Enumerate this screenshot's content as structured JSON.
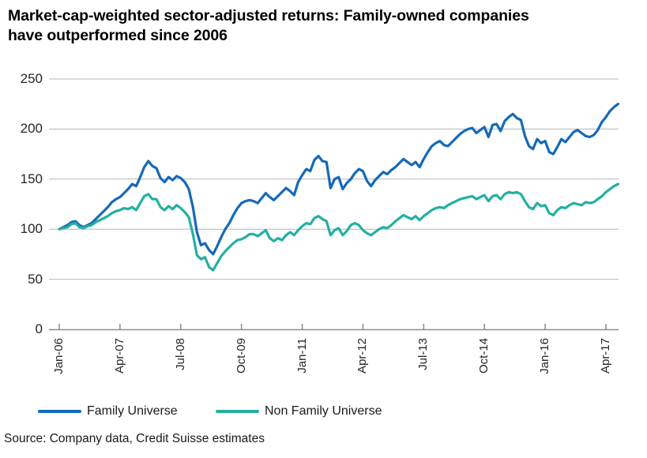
{
  "title": "Market-cap-weighted sector-adjusted returns: Family-owned companies have outperformed since 2006",
  "source": "Source: Company data, Credit Suisse estimates",
  "chart_data": {
    "type": "line",
    "title": "Market-cap-weighted sector-adjusted returns: Family-owned companies have outperformed since 2006",
    "xlabel": "",
    "ylabel": "",
    "x_unit": "monthly, Jan-06 to Jul-17, indexed to 100 at Jan-06",
    "x_tick_labels": [
      "Jan-06",
      "Apr-07",
      "Jul-08",
      "Oct-09",
      "Jan-11",
      "Apr-12",
      "Jul-13",
      "Oct-14",
      "Jan-16",
      "Apr-17"
    ],
    "y_ticks": [
      0,
      50,
      100,
      150,
      200,
      250
    ],
    "ylim": [
      0,
      250
    ],
    "grid": "horizontal",
    "legend_position": "bottom",
    "colors": {
      "family": "#1569b8",
      "non_family": "#24b0a1",
      "gridline": "#b5b5b5",
      "axis": "#8c8c8c"
    },
    "series": [
      {
        "name": "Family Universe",
        "color": "#1569b8",
        "values": [
          100,
          102,
          104,
          107,
          108,
          104,
          102,
          104,
          106,
          110,
          114,
          118,
          122,
          127,
          130,
          132,
          136,
          140,
          145,
          143,
          152,
          162,
          168,
          163,
          161,
          151,
          147,
          152,
          149,
          153,
          151,
          147,
          140,
          122,
          97,
          84,
          86,
          79,
          75,
          83,
          92,
          100,
          106,
          114,
          121,
          126,
          128,
          129,
          128,
          126,
          131,
          136,
          132,
          129,
          133,
          137,
          141,
          138,
          134,
          147,
          154,
          160,
          158,
          169,
          173,
          168,
          167,
          141,
          150,
          152,
          140,
          146,
          150,
          156,
          160,
          158,
          148,
          143,
          149,
          153,
          157,
          155,
          159,
          162,
          166,
          170,
          167,
          164,
          167,
          162,
          170,
          177,
          183,
          186,
          188,
          184,
          183,
          187,
          191,
          195,
          198,
          200,
          201,
          196,
          199,
          202,
          192,
          204,
          205,
          198,
          208,
          212,
          215,
          211,
          209,
          193,
          183,
          180,
          190,
          186,
          188,
          177,
          175,
          182,
          190,
          187,
          192,
          197,
          199,
          196,
          193,
          192,
          194,
          199,
          207,
          212,
          218,
          222,
          225
        ]
      },
      {
        "name": "Non Family Universe",
        "color": "#24b0a1",
        "values": [
          100,
          101,
          102,
          105,
          106,
          102,
          101,
          103,
          104,
          107,
          109,
          111,
          113,
          116,
          118,
          119,
          121,
          120,
          122,
          119,
          126,
          133,
          135,
          130,
          130,
          122,
          119,
          123,
          120,
          124,
          121,
          117,
          112,
          95,
          74,
          70,
          72,
          62,
          59,
          66,
          73,
          78,
          82,
          86,
          89,
          90,
          92,
          95,
          95,
          93,
          96,
          99,
          91,
          88,
          91,
          89,
          94,
          97,
          94,
          99,
          103,
          106,
          105,
          111,
          113,
          110,
          108,
          94,
          99,
          101,
          94,
          98,
          104,
          106,
          104,
          99,
          96,
          94,
          97,
          100,
          102,
          101,
          104,
          108,
          111,
          114,
          112,
          110,
          113,
          109,
          113,
          116,
          119,
          121,
          122,
          121,
          124,
          126,
          128,
          130,
          131,
          132,
          133,
          130,
          132,
          134,
          128,
          133,
          134,
          130,
          135,
          137,
          136,
          137,
          135,
          128,
          122,
          120,
          126,
          123,
          124,
          116,
          114,
          119,
          122,
          121,
          124,
          126,
          125,
          124,
          127,
          126,
          127,
          130,
          133,
          137,
          140,
          143,
          145
        ]
      }
    ]
  }
}
